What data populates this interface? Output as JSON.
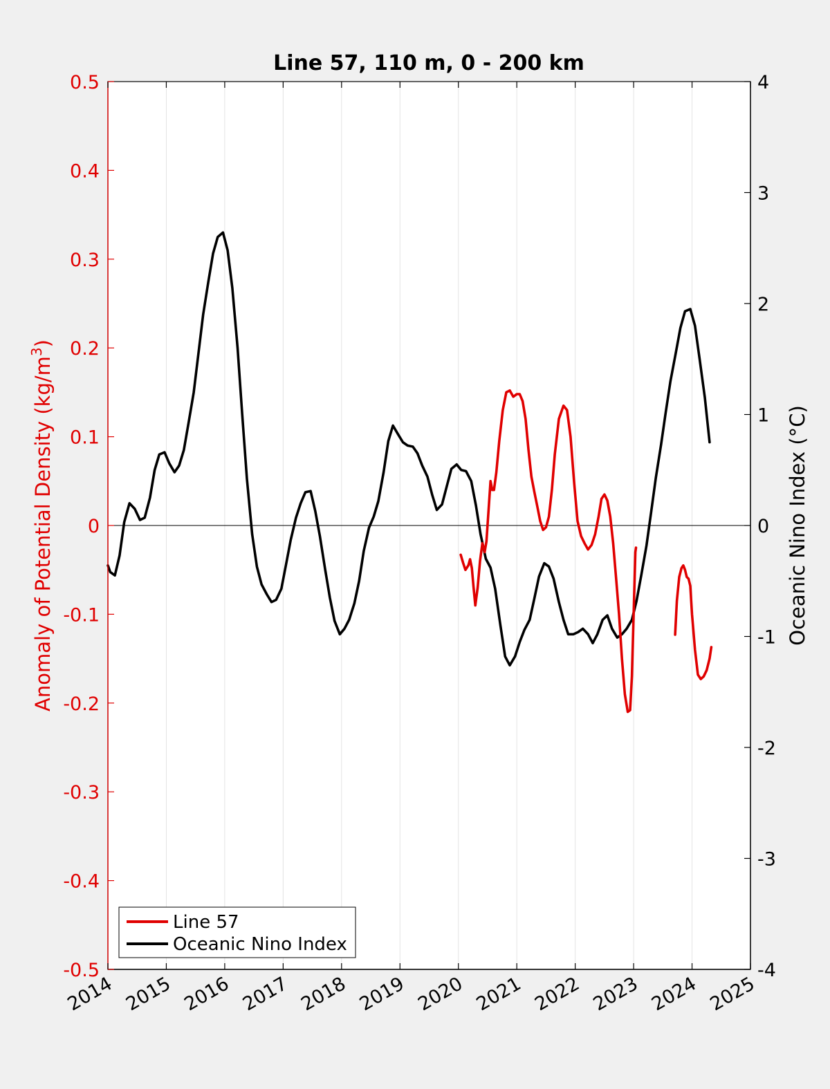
{
  "colors": {
    "figure_background": "#f0f0f0",
    "axes_background": "#ffffff",
    "left_axis": "#e00000",
    "right_axis": "#000000",
    "grid": "#e3e3e3"
  },
  "chart_data": {
    "type": "line",
    "title": "Line 57, 110 m, 0 - 200 km",
    "xlabel": "",
    "ylabel_left": "Anomaly of Potential Density (kg/m³)",
    "ylabel_left_base": "Anomaly of Potential Density (kg/m",
    "ylabel_left_sup": "3",
    "ylabel_left_end": ")",
    "ylabel_right": "Oceanic Nino Index (°C)",
    "xlim": [
      2014,
      2025
    ],
    "ylim_left": [
      -0.5,
      0.5
    ],
    "ylim_right": [
      -4,
      4
    ],
    "x_ticks": [
      "2014",
      "2015",
      "2016",
      "2017",
      "2018",
      "2019",
      "2020",
      "2021",
      "2022",
      "2023",
      "2024",
      "2025"
    ],
    "y_left_ticks": [
      "-0.5",
      "-0.4",
      "-0.3",
      "-0.2",
      "-0.1",
      "0",
      "0.1",
      "0.2",
      "0.3",
      "0.4",
      "0.5"
    ],
    "y_right_ticks": [
      "-4",
      "-3",
      "-2",
      "-1",
      "0",
      "1",
      "2",
      "3",
      "4"
    ],
    "x_grid": true,
    "zero_line": true,
    "legend_location": "bottom-left",
    "series": [
      {
        "name": "Line 57",
        "axis": "left",
        "color": "#e00000",
        "segments": [
          [
            [
              2020.04,
              -0.033
            ],
            [
              2020.08,
              -0.042
            ],
            [
              2020.12,
              -0.05
            ],
            [
              2020.17,
              -0.045
            ],
            [
              2020.2,
              -0.038
            ],
            [
              2020.23,
              -0.048
            ],
            [
              2020.26,
              -0.07
            ],
            [
              2020.29,
              -0.09
            ],
            [
              2020.33,
              -0.07
            ],
            [
              2020.37,
              -0.04
            ],
            [
              2020.41,
              -0.02
            ],
            [
              2020.45,
              -0.03
            ],
            [
              2020.48,
              -0.018
            ],
            [
              2020.52,
              0.02
            ],
            [
              2020.55,
              0.05
            ],
            [
              2020.58,
              0.04
            ],
            [
              2020.61,
              0.04
            ],
            [
              2020.65,
              0.06
            ],
            [
              2020.7,
              0.095
            ],
            [
              2020.76,
              0.13
            ],
            [
              2020.82,
              0.15
            ],
            [
              2020.88,
              0.152
            ],
            [
              2020.94,
              0.145
            ],
            [
              2021.0,
              0.148
            ],
            [
              2021.05,
              0.148
            ],
            [
              2021.1,
              0.14
            ],
            [
              2021.15,
              0.12
            ],
            [
              2021.2,
              0.085
            ],
            [
              2021.25,
              0.055
            ],
            [
              2021.3,
              0.038
            ],
            [
              2021.35,
              0.022
            ],
            [
              2021.4,
              0.005
            ],
            [
              2021.45,
              -0.005
            ],
            [
              2021.5,
              -0.002
            ],
            [
              2021.55,
              0.01
            ],
            [
              2021.6,
              0.04
            ],
            [
              2021.65,
              0.08
            ],
            [
              2021.72,
              0.12
            ],
            [
              2021.8,
              0.135
            ],
            [
              2021.86,
              0.13
            ],
            [
              2021.92,
              0.1
            ],
            [
              2021.98,
              0.05
            ],
            [
              2022.04,
              0.005
            ],
            [
              2022.1,
              -0.012
            ],
            [
              2022.16,
              -0.02
            ],
            [
              2022.22,
              -0.027
            ],
            [
              2022.28,
              -0.022
            ],
            [
              2022.34,
              -0.01
            ],
            [
              2022.4,
              0.01
            ],
            [
              2022.45,
              0.03
            ],
            [
              2022.5,
              0.035
            ],
            [
              2022.55,
              0.028
            ],
            [
              2022.6,
              0.01
            ],
            [
              2022.65,
              -0.02
            ],
            [
              2022.7,
              -0.06
            ],
            [
              2022.75,
              -0.1
            ],
            [
              2022.8,
              -0.15
            ],
            [
              2022.85,
              -0.19
            ],
            [
              2022.9,
              -0.21
            ],
            [
              2022.94,
              -0.208
            ],
            [
              2022.97,
              -0.17
            ],
            [
              2023.0,
              -0.1
            ],
            [
              2023.03,
              -0.03
            ],
            [
              2023.04,
              -0.025
            ]
          ],
          [
            [
              2023.71,
              -0.123
            ],
            [
              2023.74,
              -0.085
            ],
            [
              2023.78,
              -0.058
            ],
            [
              2023.82,
              -0.048
            ],
            [
              2023.85,
              -0.045
            ],
            [
              2023.88,
              -0.05
            ],
            [
              2023.91,
              -0.058
            ],
            [
              2023.94,
              -0.06
            ],
            [
              2023.97,
              -0.068
            ],
            [
              2024.0,
              -0.1
            ],
            [
              2024.05,
              -0.14
            ],
            [
              2024.1,
              -0.168
            ],
            [
              2024.15,
              -0.173
            ],
            [
              2024.2,
              -0.17
            ],
            [
              2024.25,
              -0.163
            ],
            [
              2024.3,
              -0.15
            ],
            [
              2024.33,
              -0.137
            ]
          ]
        ]
      },
      {
        "name": "Oceanic Nino Index",
        "axis": "right",
        "color": "#000000",
        "values": [
          [
            2014.0,
            -0.36
          ],
          [
            2014.04,
            -0.42
          ],
          [
            2014.12,
            -0.45
          ],
          [
            2014.2,
            -0.27
          ],
          [
            2014.28,
            0.03
          ],
          [
            2014.37,
            0.2
          ],
          [
            2014.46,
            0.15
          ],
          [
            2014.55,
            0.05
          ],
          [
            2014.63,
            0.07
          ],
          [
            2014.72,
            0.25
          ],
          [
            2014.8,
            0.5
          ],
          [
            2014.88,
            0.64
          ],
          [
            2014.97,
            0.66
          ],
          [
            2015.05,
            0.56
          ],
          [
            2015.14,
            0.48
          ],
          [
            2015.22,
            0.54
          ],
          [
            2015.3,
            0.68
          ],
          [
            2015.38,
            0.92
          ],
          [
            2015.47,
            1.2
          ],
          [
            2015.55,
            1.55
          ],
          [
            2015.63,
            1.9
          ],
          [
            2015.72,
            2.2
          ],
          [
            2015.8,
            2.45
          ],
          [
            2015.88,
            2.6
          ],
          [
            2015.97,
            2.64
          ],
          [
            2016.05,
            2.48
          ],
          [
            2016.13,
            2.14
          ],
          [
            2016.22,
            1.6
          ],
          [
            2016.3,
            1.0
          ],
          [
            2016.38,
            0.42
          ],
          [
            2016.47,
            -0.08
          ],
          [
            2016.55,
            -0.37
          ],
          [
            2016.63,
            -0.53
          ],
          [
            2016.72,
            -0.62
          ],
          [
            2016.8,
            -0.69
          ],
          [
            2016.88,
            -0.67
          ],
          [
            2016.97,
            -0.57
          ],
          [
            2017.05,
            -0.35
          ],
          [
            2017.13,
            -0.13
          ],
          [
            2017.22,
            0.07
          ],
          [
            2017.3,
            0.2
          ],
          [
            2017.38,
            0.3
          ],
          [
            2017.47,
            0.31
          ],
          [
            2017.55,
            0.13
          ],
          [
            2017.63,
            -0.1
          ],
          [
            2017.72,
            -0.4
          ],
          [
            2017.8,
            -0.65
          ],
          [
            2017.88,
            -0.86
          ],
          [
            2017.97,
            -0.98
          ],
          [
            2018.05,
            -0.93
          ],
          [
            2018.13,
            -0.85
          ],
          [
            2018.22,
            -0.7
          ],
          [
            2018.3,
            -0.5
          ],
          [
            2018.38,
            -0.23
          ],
          [
            2018.47,
            -0.02
          ],
          [
            2018.55,
            0.08
          ],
          [
            2018.63,
            0.22
          ],
          [
            2018.72,
            0.48
          ],
          [
            2018.8,
            0.76
          ],
          [
            2018.88,
            0.9
          ],
          [
            2018.97,
            0.82
          ],
          [
            2019.05,
            0.75
          ],
          [
            2019.13,
            0.72
          ],
          [
            2019.22,
            0.71
          ],
          [
            2019.3,
            0.65
          ],
          [
            2019.38,
            0.54
          ],
          [
            2019.47,
            0.44
          ],
          [
            2019.55,
            0.28
          ],
          [
            2019.63,
            0.14
          ],
          [
            2019.72,
            0.19
          ],
          [
            2019.8,
            0.35
          ],
          [
            2019.88,
            0.51
          ],
          [
            2019.97,
            0.55
          ],
          [
            2020.05,
            0.5
          ],
          [
            2020.13,
            0.49
          ],
          [
            2020.22,
            0.4
          ],
          [
            2020.3,
            0.18
          ],
          [
            2020.38,
            -0.08
          ],
          [
            2020.47,
            -0.3
          ],
          [
            2020.55,
            -0.38
          ],
          [
            2020.63,
            -0.57
          ],
          [
            2020.72,
            -0.9
          ],
          [
            2020.8,
            -1.18
          ],
          [
            2020.88,
            -1.26
          ],
          [
            2020.97,
            -1.18
          ],
          [
            2021.05,
            -1.05
          ],
          [
            2021.13,
            -0.94
          ],
          [
            2021.22,
            -0.85
          ],
          [
            2021.3,
            -0.66
          ],
          [
            2021.38,
            -0.46
          ],
          [
            2021.47,
            -0.34
          ],
          [
            2021.55,
            -0.37
          ],
          [
            2021.63,
            -0.48
          ],
          [
            2021.72,
            -0.69
          ],
          [
            2021.8,
            -0.85
          ],
          [
            2021.88,
            -0.98
          ],
          [
            2021.97,
            -0.98
          ],
          [
            2022.05,
            -0.96
          ],
          [
            2022.13,
            -0.93
          ],
          [
            2022.22,
            -0.98
          ],
          [
            2022.3,
            -1.06
          ],
          [
            2022.38,
            -0.98
          ],
          [
            2022.47,
            -0.85
          ],
          [
            2022.55,
            -0.81
          ],
          [
            2022.63,
            -0.93
          ],
          [
            2022.72,
            -1.01
          ],
          [
            2022.8,
            -0.98
          ],
          [
            2022.88,
            -0.93
          ],
          [
            2022.97,
            -0.85
          ],
          [
            2023.05,
            -0.68
          ],
          [
            2023.13,
            -0.45
          ],
          [
            2023.22,
            -0.18
          ],
          [
            2023.3,
            0.12
          ],
          [
            2023.38,
            0.43
          ],
          [
            2023.47,
            0.73
          ],
          [
            2023.55,
            1.02
          ],
          [
            2023.63,
            1.3
          ],
          [
            2023.72,
            1.55
          ],
          [
            2023.8,
            1.78
          ],
          [
            2023.88,
            1.93
          ],
          [
            2023.97,
            1.95
          ],
          [
            2024.05,
            1.8
          ],
          [
            2024.13,
            1.5
          ],
          [
            2024.22,
            1.15
          ],
          [
            2024.3,
            0.75
          ]
        ]
      }
    ]
  }
}
